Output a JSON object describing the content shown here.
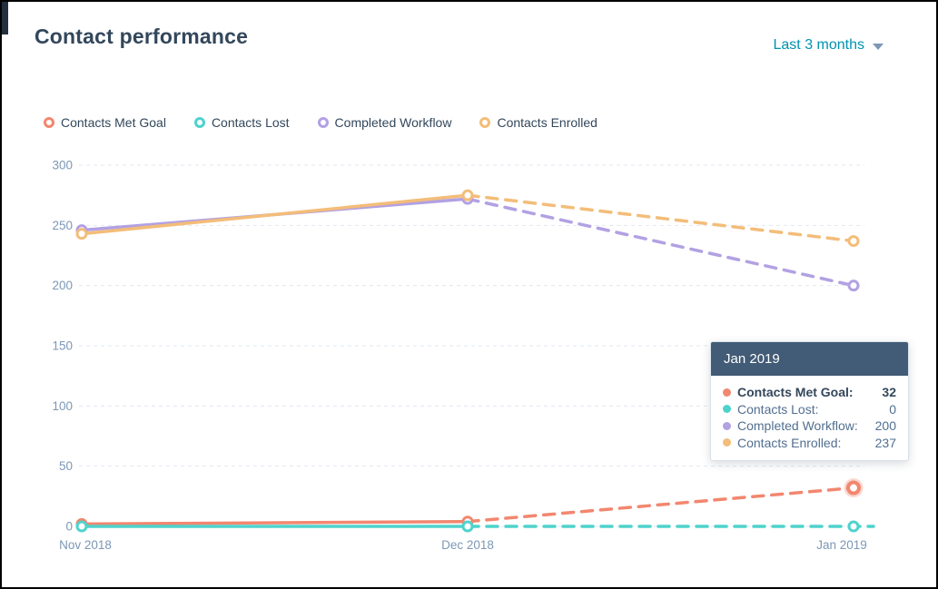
{
  "header": {
    "title": "Contact performance",
    "range_selector": {
      "label": "Last 3 months"
    }
  },
  "chart_data": {
    "type": "line",
    "title": "Contact performance",
    "x": [
      "Nov 2018",
      "Dec 2018",
      "Jan 2019"
    ],
    "series": [
      {
        "name": "Contacts Met Goal",
        "color": "#f2876f",
        "values": [
          2,
          4,
          32
        ]
      },
      {
        "name": "Contacts Lost",
        "color": "#4ed3cc",
        "values": [
          0,
          0,
          0
        ],
        "line_extends_right": true
      },
      {
        "name": "Completed Workflow",
        "color": "#b2a1e3",
        "values": [
          246,
          272,
          200
        ]
      },
      {
        "name": "Contacts Enrolled",
        "color": "#f3bd79",
        "values": [
          243,
          275,
          237
        ]
      }
    ],
    "ylim": [
      0,
      300
    ],
    "yticks": [
      300,
      250,
      200,
      150,
      100,
      50,
      0
    ],
    "grid": "horizontal-dashed",
    "legend_position": "top-left",
    "solid_segment": [
      "Nov 2018",
      "Dec 2018"
    ],
    "dashed_segment": [
      "Dec 2018",
      "Jan 2019"
    ],
    "hovered_point": {
      "series_index": 0,
      "point_index": 2
    }
  },
  "tooltip": {
    "header": "Jan 2019",
    "rows": [
      {
        "label": "Contacts Met Goal:",
        "value": "32",
        "bold": true
      },
      {
        "label": "Contacts Lost:",
        "value": "0",
        "bold": false
      },
      {
        "label": "Completed Workflow:",
        "value": "200",
        "bold": false
      },
      {
        "label": "Contacts Enrolled:",
        "value": "237",
        "bold": false
      }
    ]
  },
  "colors": {
    "title_text": "#33475b",
    "axis_text": "#7c98b6",
    "link": "#0091ae",
    "gridline": "#e1e8f0",
    "tooltip_header_bg": "#425b76"
  }
}
